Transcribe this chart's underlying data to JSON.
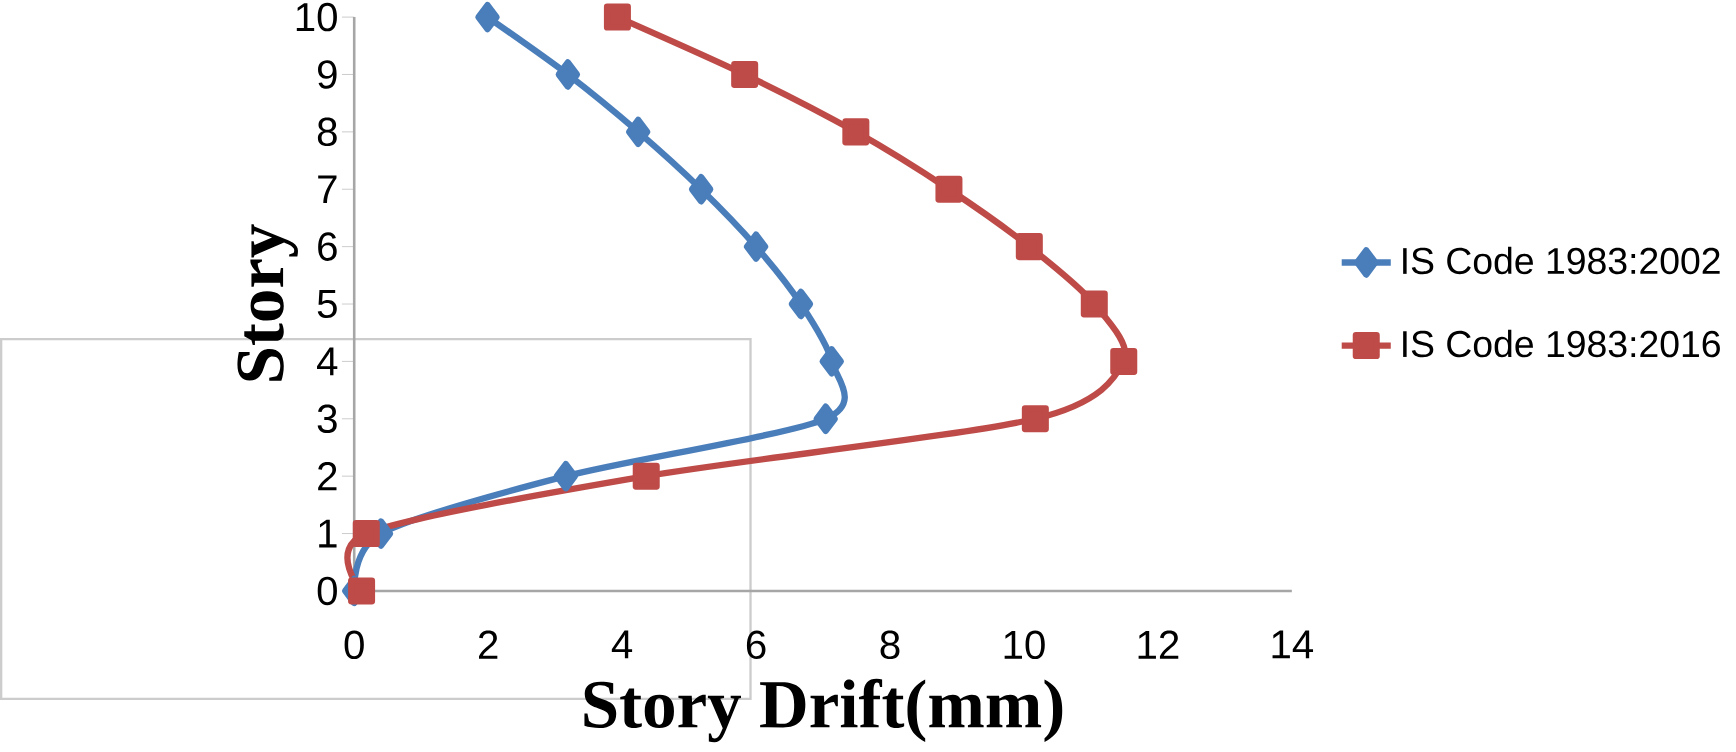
{
  "chart_data": {
    "type": "line",
    "xlabel": "Story Drift(mm)",
    "ylabel": "Story",
    "xlim": [
      0,
      14
    ],
    "xticks": [
      0,
      2,
      4,
      6,
      8,
      10,
      12,
      14
    ],
    "ylim": [
      0,
      10
    ],
    "yticks": [
      0,
      1,
      2,
      3,
      4,
      5,
      6,
      7,
      8,
      9,
      10
    ],
    "grid": false,
    "legend": "right",
    "line_style": "solid",
    "series": [
      {
        "name": "IS Code 1983:2002",
        "color": "#4a7ebb",
        "marker": "diamond",
        "x": [
          0,
          0.4,
          3.16,
          7.04,
          7.13,
          6.67,
          6.0,
          5.18,
          4.24,
          3.19,
          1.99
        ],
        "values": [
          0,
          1,
          2,
          3,
          4,
          5,
          6,
          7,
          8,
          9,
          10
        ]
      },
      {
        "name": "IS Code 1983:2016",
        "color": "#be4b48",
        "marker": "square",
        "x": [
          0.11,
          0.18,
          4.36,
          10.17,
          11.49,
          11.05,
          10.08,
          8.88,
          7.49,
          5.83,
          3.93
        ],
        "values": [
          0,
          1,
          2,
          3,
          4,
          5,
          6,
          7,
          8,
          9,
          10
        ]
      }
    ]
  }
}
